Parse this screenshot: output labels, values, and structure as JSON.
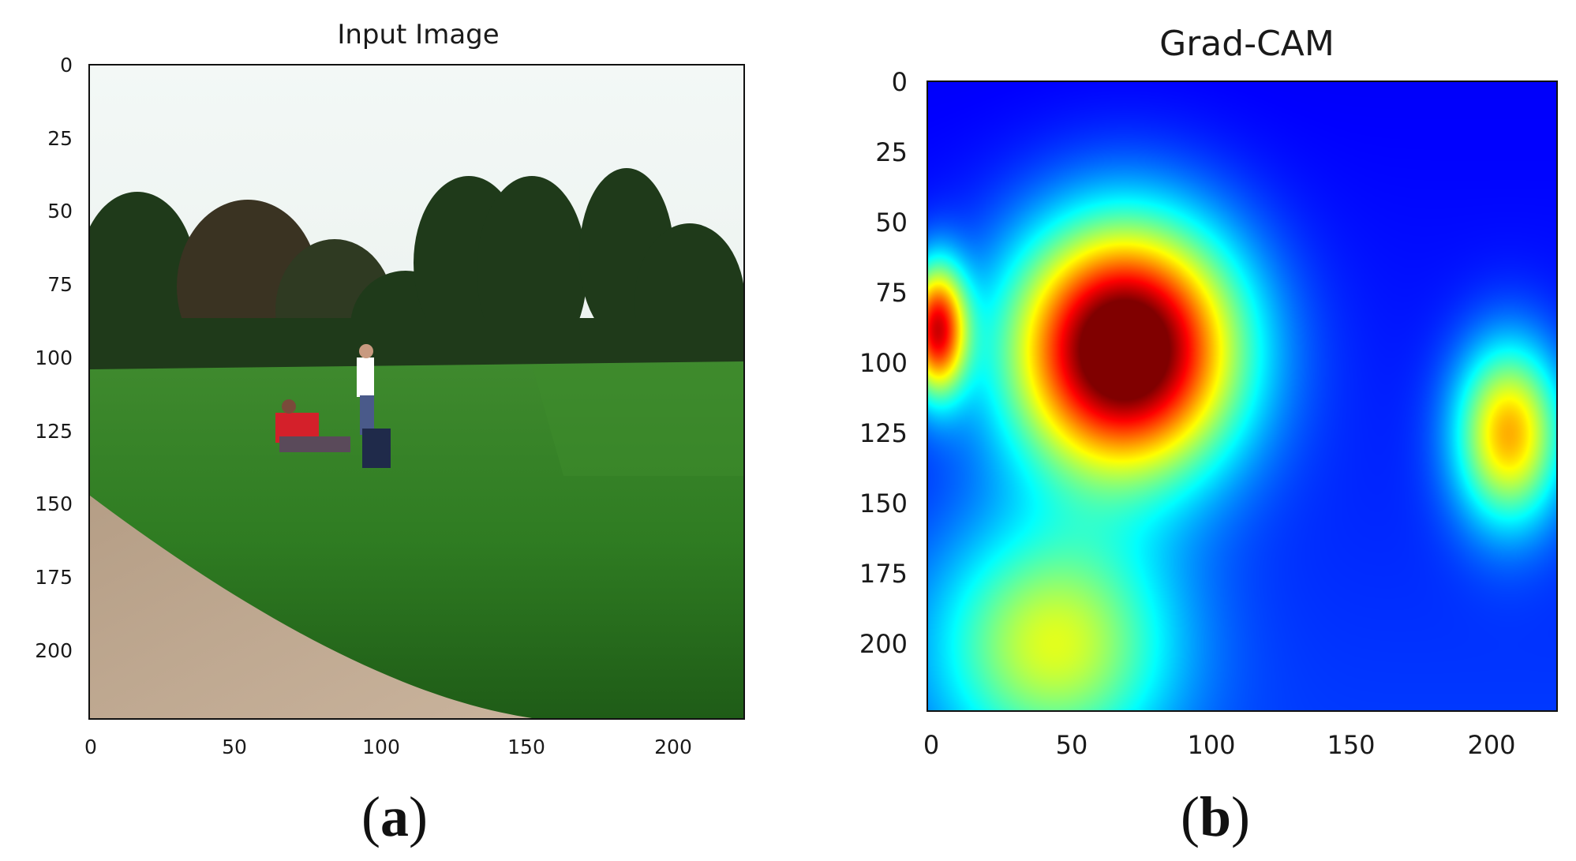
{
  "chart_data": [
    {
      "type": "image",
      "title": "Input Image",
      "panel_label": "a",
      "xlim": [
        0,
        224
      ],
      "ylim": [
        224,
        0
      ],
      "x_ticks": [
        0,
        50,
        100,
        150,
        200
      ],
      "y_ticks": [
        0,
        25,
        50,
        75,
        100,
        125,
        150,
        175,
        200
      ]
    },
    {
      "type": "heatmap",
      "title": "Grad-CAM",
      "panel_label": "b",
      "colormap": "jet",
      "xlim": [
        0,
        224
      ],
      "ylim": [
        224,
        0
      ],
      "x_ticks": [
        0,
        50,
        100,
        150,
        200
      ],
      "y_ticks": [
        0,
        25,
        50,
        75,
        100,
        125,
        150,
        175,
        200
      ],
      "hotspots": [
        {
          "x": 70,
          "y": 95,
          "intensity": 1.0,
          "rx": 38,
          "ry": 42
        },
        {
          "x": 3,
          "y": 88,
          "intensity": 0.72,
          "rx": 10,
          "ry": 22
        },
        {
          "x": 207,
          "y": 125,
          "intensity": 0.55,
          "rx": 18,
          "ry": 30
        },
        {
          "x": 45,
          "y": 200,
          "intensity": 0.42,
          "rx": 40,
          "ry": 40
        }
      ]
    }
  ]
}
